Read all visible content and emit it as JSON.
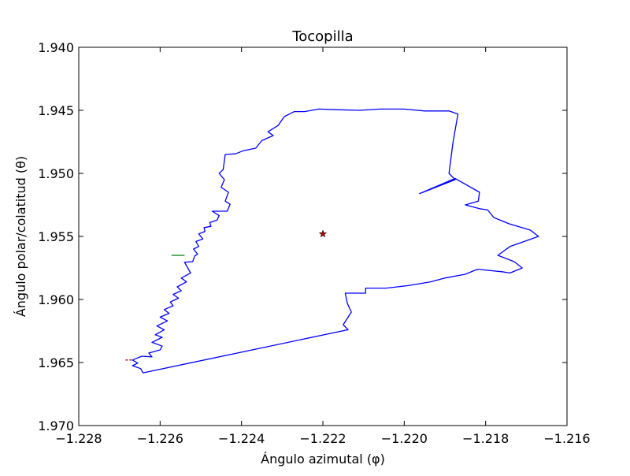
{
  "chart_data": {
    "type": "line",
    "title": "Tocopilla",
    "xlabel": "Ángulo azimutal (φ)",
    "ylabel": "Ángulo polar/colatitud (θ)",
    "xlim": [
      -1.228,
      -1.216
    ],
    "ylim": [
      1.97,
      1.94
    ],
    "y_axis_inverted": true,
    "grid": false,
    "x_ticks": [
      -1.228,
      -1.226,
      -1.224,
      -1.222,
      -1.22,
      -1.218,
      -1.216
    ],
    "x_tick_labels": [
      "−1.228",
      "−1.226",
      "−1.224",
      "−1.222",
      "−1.220",
      "−1.218",
      "−1.216"
    ],
    "y_ticks": [
      1.94,
      1.945,
      1.95,
      1.955,
      1.96,
      1.965,
      1.97
    ],
    "y_tick_labels": [
      "1.940",
      "1.945",
      "1.950",
      "1.955",
      "1.960",
      "1.965",
      "1.970"
    ],
    "series": [
      {
        "color": "#0000ff",
        "style": "solid",
        "points": [
          [
            -1.22642,
            1.96582
          ],
          [
            -1.22648,
            1.96548
          ],
          [
            -1.22668,
            1.96525
          ],
          [
            -1.22655,
            1.96505
          ],
          [
            -1.22668,
            1.9648
          ],
          [
            -1.22645,
            1.9645
          ],
          [
            -1.2262,
            1.96455
          ],
          [
            -1.22628,
            1.96425
          ],
          [
            -1.226,
            1.964
          ],
          [
            -1.22595,
            1.9637
          ],
          [
            -1.2262,
            1.9634
          ],
          [
            -1.22595,
            1.963
          ],
          [
            -1.22612,
            1.9628
          ],
          [
            -1.2259,
            1.9624
          ],
          [
            -1.22608,
            1.9621
          ],
          [
            -1.22582,
            1.9617
          ],
          [
            -1.226,
            1.9614
          ],
          [
            -1.22578,
            1.9611
          ],
          [
            -1.2259,
            1.9608
          ],
          [
            -1.22568,
            1.9605
          ],
          [
            -1.22575,
            1.9602
          ],
          [
            -1.22555,
            1.9599
          ],
          [
            -1.22568,
            1.9596
          ],
          [
            -1.22548,
            1.9593
          ],
          [
            -1.22558,
            1.959
          ],
          [
            -1.22535,
            1.9586
          ],
          [
            -1.22548,
            1.9583
          ],
          [
            -1.22525,
            1.9579
          ],
          [
            -1.22532,
            1.9575
          ],
          [
            -1.2254,
            1.95705
          ],
          [
            -1.2252,
            1.957
          ],
          [
            -1.22515,
            1.95655
          ],
          [
            -1.22508,
            1.9564
          ],
          [
            -1.22518,
            1.956
          ],
          [
            -1.22505,
            1.9558
          ],
          [
            -1.22512,
            1.9554
          ],
          [
            -1.22495,
            1.9552
          ],
          [
            -1.22505,
            1.9548
          ],
          [
            -1.2249,
            1.9546
          ],
          [
            -1.22492,
            1.9543
          ],
          [
            -1.22475,
            1.9542
          ],
          [
            -1.22478,
            1.9539
          ],
          [
            -1.2246,
            1.9537
          ],
          [
            -1.22455,
            1.95335
          ],
          [
            -1.22472,
            1.953
          ],
          [
            -1.22435,
            1.953
          ],
          [
            -1.22428,
            1.95245
          ],
          [
            -1.2244,
            1.9522
          ],
          [
            -1.22432,
            1.9515
          ],
          [
            -1.2245,
            1.9511
          ],
          [
            -1.22442,
            1.9505
          ],
          [
            -1.22455,
            1.95
          ],
          [
            -1.22445,
            1.9497
          ],
          [
            -1.2244,
            1.9485
          ],
          [
            -1.22415,
            1.94845
          ],
          [
            -1.22395,
            1.9482
          ],
          [
            -1.22365,
            1.948
          ],
          [
            -1.2235,
            1.9474
          ],
          [
            -1.22322,
            1.947
          ],
          [
            -1.22335,
            1.9467
          ],
          [
            -1.2231,
            1.9462
          ],
          [
            -1.22295,
            1.9455
          ],
          [
            -1.2227,
            1.9451
          ],
          [
            -1.22245,
            1.9451
          ],
          [
            -1.2221,
            1.9449
          ],
          [
            -1.22165,
            1.94495
          ],
          [
            -1.2211,
            1.945
          ],
          [
            -1.2206,
            1.9449
          ],
          [
            -1.22,
            1.9449
          ],
          [
            -1.2195,
            1.94505
          ],
          [
            -1.2189,
            1.94505
          ],
          [
            -1.21868,
            1.9453
          ],
          [
            -1.2188,
            1.9475
          ],
          [
            -1.2189,
            1.95
          ],
          [
            -1.21875,
            1.9505
          ],
          [
            -1.21962,
            1.9516
          ],
          [
            -1.21875,
            1.9504
          ],
          [
            -1.21815,
            1.9515
          ],
          [
            -1.21818,
            1.9522
          ],
          [
            -1.2185,
            1.9525
          ],
          [
            -1.21815,
            1.9528
          ],
          [
            -1.21795,
            1.9529
          ],
          [
            -1.2178,
            1.9535
          ],
          [
            -1.21742,
            1.954
          ],
          [
            -1.2169,
            1.9545
          ],
          [
            -1.2167,
            1.955
          ],
          [
            -1.2174,
            1.9558
          ],
          [
            -1.2177,
            1.9565
          ],
          [
            -1.2173,
            1.957
          ],
          [
            -1.2171,
            1.9575
          ],
          [
            -1.2174,
            1.9579
          ],
          [
            -1.2176,
            1.9578
          ],
          [
            -1.2182,
            1.9576
          ],
          [
            -1.2185,
            1.958
          ],
          [
            -1.219,
            1.9583
          ],
          [
            -1.21935,
            1.9586
          ],
          [
            -1.2199,
            1.9589
          ],
          [
            -1.22045,
            1.9591
          ],
          [
            -1.22095,
            1.9591
          ],
          [
            -1.22095,
            1.9595
          ],
          [
            -1.22145,
            1.9595
          ],
          [
            -1.2214,
            1.9603
          ],
          [
            -1.2213,
            1.961
          ],
          [
            -1.2215,
            1.962
          ],
          [
            -1.22138,
            1.9624
          ],
          [
            -1.22642,
            1.96582
          ]
        ]
      },
      {
        "color": "#008000",
        "style": "solid",
        "points": [
          [
            -1.22572,
            1.9565
          ],
          [
            -1.2254,
            1.9565
          ]
        ]
      },
      {
        "color": "#cc0000",
        "style": "dashed",
        "points": [
          [
            -1.22685,
            1.9648
          ],
          [
            -1.2267,
            1.9648
          ]
        ]
      }
    ],
    "markers": [
      {
        "type": "star",
        "x": -1.222,
        "y": 1.9548,
        "color": "#cc0000"
      }
    ]
  }
}
